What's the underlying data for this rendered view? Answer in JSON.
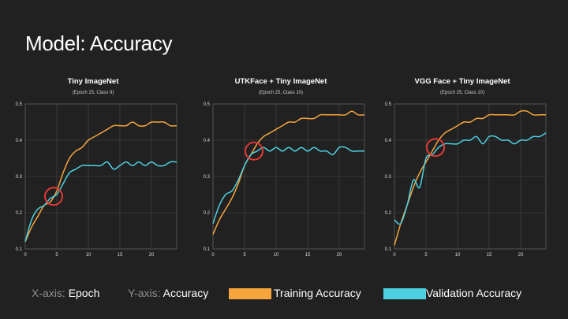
{
  "slide": {
    "title": "Model: Accuracy"
  },
  "legend": {
    "x_key": "X-axis:",
    "x_val": "Epoch",
    "y_key": "Y-axis:",
    "y_val": "Accuracy",
    "training": "Training Accuracy",
    "validation": "Validation Accuracy"
  },
  "colors": {
    "training": "#f5a53c",
    "validation": "#4dd0e1",
    "circle": "#e53935"
  },
  "chart_data": [
    {
      "type": "line",
      "title": "Tiny ImageNet",
      "subtitle": "(Epoch 25, Class 9)",
      "xlabel": "",
      "ylabel": "",
      "xlim": [
        0,
        24
      ],
      "ylim": [
        0.1,
        0.5
      ],
      "xticks": [
        "0",
        "5",
        "10",
        "15",
        "20"
      ],
      "yticks": [
        "0.1",
        "0.2",
        "0.3",
        "0.4",
        "0.5"
      ],
      "grid": true,
      "x": [
        0,
        1,
        2,
        3,
        4,
        5,
        6,
        7,
        8,
        9,
        10,
        11,
        12,
        13,
        14,
        15,
        16,
        17,
        18,
        19,
        20,
        21,
        22,
        23,
        24
      ],
      "series": [
        {
          "name": "Training Accuracy",
          "values": [
            0.12,
            0.16,
            0.19,
            0.22,
            0.23,
            0.26,
            0.31,
            0.35,
            0.37,
            0.38,
            0.4,
            0.41,
            0.42,
            0.43,
            0.44,
            0.44,
            0.44,
            0.45,
            0.44,
            0.44,
            0.45,
            0.45,
            0.45,
            0.44,
            0.44
          ]
        },
        {
          "name": "Validation Accuracy",
          "values": [
            0.12,
            0.18,
            0.21,
            0.22,
            0.24,
            0.25,
            0.28,
            0.31,
            0.32,
            0.33,
            0.33,
            0.33,
            0.33,
            0.34,
            0.32,
            0.33,
            0.34,
            0.33,
            0.34,
            0.33,
            0.34,
            0.33,
            0.33,
            0.34,
            0.34
          ]
        }
      ],
      "marker": {
        "x": 4.5,
        "y": 0.245
      }
    },
    {
      "type": "line",
      "title": "UTKFace + Tiny ImageNet",
      "subtitle": "(Epoch 25, Class 10)",
      "xlabel": "",
      "ylabel": "",
      "xlim": [
        0,
        24
      ],
      "ylim": [
        0.1,
        0.5
      ],
      "xticks": [
        "0",
        "5",
        "10",
        "15",
        "20"
      ],
      "yticks": [
        "0.1",
        "0.2",
        "0.3",
        "0.4",
        "0.5"
      ],
      "grid": true,
      "x": [
        0,
        1,
        2,
        3,
        4,
        5,
        6,
        7,
        8,
        9,
        10,
        11,
        12,
        13,
        14,
        15,
        16,
        17,
        18,
        19,
        20,
        21,
        22,
        23,
        24
      ],
      "series": [
        {
          "name": "Training Accuracy",
          "values": [
            0.14,
            0.18,
            0.21,
            0.24,
            0.28,
            0.33,
            0.36,
            0.39,
            0.41,
            0.42,
            0.43,
            0.44,
            0.45,
            0.45,
            0.46,
            0.46,
            0.46,
            0.47,
            0.47,
            0.47,
            0.47,
            0.47,
            0.48,
            0.47,
            0.47
          ]
        },
        {
          "name": "Validation Accuracy",
          "values": [
            0.17,
            0.22,
            0.25,
            0.26,
            0.29,
            0.33,
            0.36,
            0.37,
            0.38,
            0.37,
            0.38,
            0.37,
            0.38,
            0.37,
            0.38,
            0.37,
            0.38,
            0.37,
            0.37,
            0.36,
            0.38,
            0.38,
            0.37,
            0.37,
            0.37
          ]
        }
      ],
      "marker": {
        "x": 6.5,
        "y": 0.37
      }
    },
    {
      "type": "line",
      "title": "VGG Face + Tiny ImageNet",
      "subtitle": "(Epoch 25, Class 10)",
      "xlabel": "",
      "ylabel": "",
      "xlim": [
        0,
        24
      ],
      "ylim": [
        0.1,
        0.5
      ],
      "xticks": [
        "0",
        "5",
        "10",
        "15",
        "20"
      ],
      "yticks": [
        "0.1",
        "0.2",
        "0.3",
        "0.4",
        "0.5"
      ],
      "grid": true,
      "x": [
        0,
        1,
        2,
        3,
        4,
        5,
        6,
        7,
        8,
        9,
        10,
        11,
        12,
        13,
        14,
        15,
        16,
        17,
        18,
        19,
        20,
        21,
        22,
        23,
        24
      ],
      "series": [
        {
          "name": "Training Accuracy",
          "values": [
            0.11,
            0.17,
            0.22,
            0.27,
            0.31,
            0.34,
            0.37,
            0.4,
            0.42,
            0.43,
            0.44,
            0.45,
            0.45,
            0.46,
            0.46,
            0.47,
            0.47,
            0.47,
            0.47,
            0.47,
            0.48,
            0.48,
            0.47,
            0.47,
            0.47
          ]
        },
        {
          "name": "Validation Accuracy",
          "values": [
            0.18,
            0.17,
            0.22,
            0.29,
            0.27,
            0.35,
            0.36,
            0.38,
            0.39,
            0.39,
            0.39,
            0.4,
            0.4,
            0.41,
            0.39,
            0.41,
            0.41,
            0.4,
            0.4,
            0.39,
            0.4,
            0.4,
            0.41,
            0.41,
            0.42
          ]
        }
      ],
      "marker": {
        "x": 6.5,
        "y": 0.38
      }
    }
  ]
}
